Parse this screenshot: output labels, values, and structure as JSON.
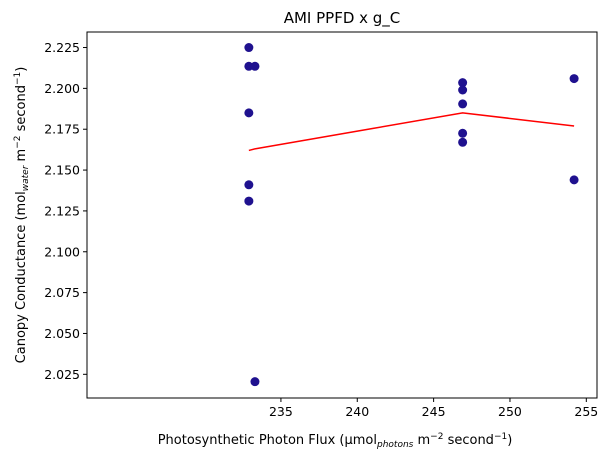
{
  "chart_data": {
    "type": "scatter",
    "title": "AMI PPFD x g_C",
    "xlabel": {
      "pre": "Photosynthetic Photon Flux (µmol",
      "sub": "photons",
      "mid": " m",
      "sup1": "−2",
      "mid2": " second",
      "sup2": "−1",
      "post": ")"
    },
    "ylabel": {
      "pre": "Canopy Conductance (mol",
      "sub": "water",
      "mid": " m",
      "sup1": "−2",
      "mid2": " second",
      "sup2": "−1",
      "post": ")"
    },
    "xlim": [
      222.3,
      255.7
    ],
    "ylim": [
      2.0105,
      2.2345
    ],
    "xticks": [
      235,
      240,
      245,
      250,
      255
    ],
    "yticks": [
      2.025,
      2.05,
      2.075,
      2.1,
      2.125,
      2.15,
      2.175,
      2.2,
      2.225
    ],
    "grid": false,
    "series": [
      {
        "kind": "scatter",
        "color": "#1f118f",
        "points": [
          {
            "x": 232.9,
            "y": 2.225
          },
          {
            "x": 232.9,
            "y": 2.2135
          },
          {
            "x": 233.3,
            "y": 2.2135
          },
          {
            "x": 232.9,
            "y": 2.185
          },
          {
            "x": 232.9,
            "y": 2.141
          },
          {
            "x": 232.9,
            "y": 2.131
          },
          {
            "x": 233.3,
            "y": 2.0205
          },
          {
            "x": 246.9,
            "y": 2.2035
          },
          {
            "x": 246.9,
            "y": 2.199
          },
          {
            "x": 246.9,
            "y": 2.1905
          },
          {
            "x": 246.9,
            "y": 2.1725
          },
          {
            "x": 246.9,
            "y": 2.167
          },
          {
            "x": 254.2,
            "y": 2.206
          },
          {
            "x": 254.2,
            "y": 2.144
          }
        ]
      },
      {
        "kind": "line",
        "color": "#ff0000",
        "points": [
          {
            "x": 232.9,
            "y": 2.162
          },
          {
            "x": 233.3,
            "y": 2.163
          },
          {
            "x": 246.9,
            "y": 2.185
          },
          {
            "x": 254.2,
            "y": 2.177
          }
        ]
      }
    ]
  }
}
